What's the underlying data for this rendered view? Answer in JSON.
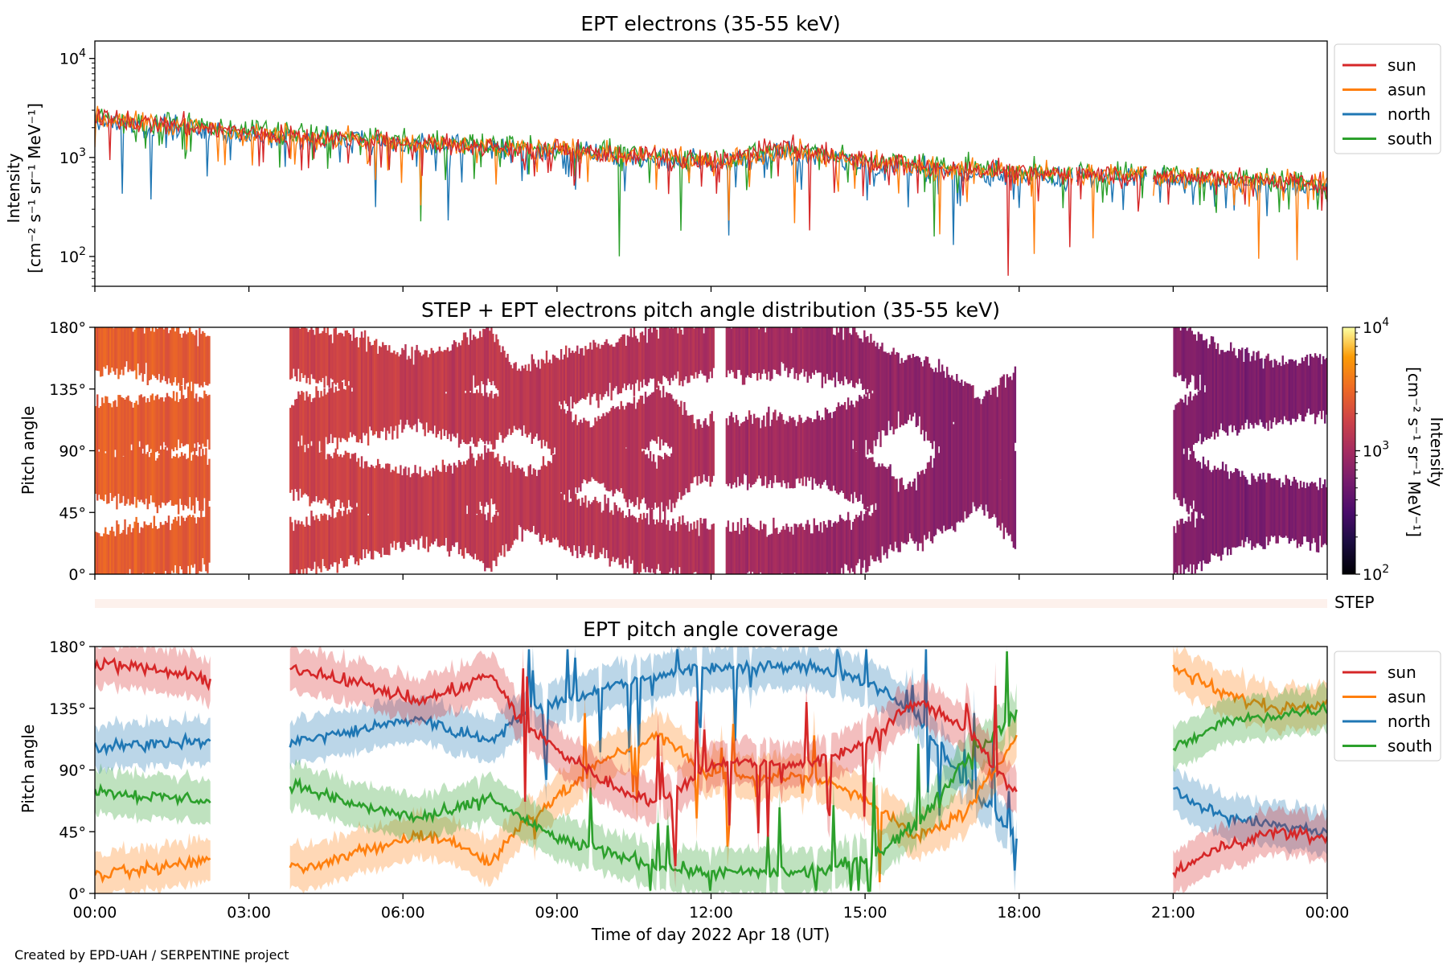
{
  "colors": {
    "sun": "#d62728",
    "asun": "#ff7f0e",
    "north": "#1f77b4",
    "south": "#2ca02c",
    "step_strip": "#fdf1ec"
  },
  "footer": "Created by EPD-UAH / SERPENTINE project",
  "chart_data": [
    {
      "type": "line",
      "title": "EPT electrons (35-55 keV)",
      "ylabel_line1": "Intensity",
      "ylabel_line2": "[cm⁻² s⁻¹ sr⁻¹ MeV⁻¹]",
      "yscale": "log",
      "ylim": [
        50,
        15000
      ],
      "yticks": [
        {
          "v": 100,
          "b": "10",
          "e": "2"
        },
        {
          "v": 1000,
          "b": "10",
          "e": "3"
        },
        {
          "v": 10000,
          "b": "10",
          "e": "4"
        }
      ],
      "xlim": [
        0,
        24
      ],
      "legend_position": "outside-right",
      "gaps": [
        [
          19.05,
          19.12
        ],
        [
          20.5,
          20.6
        ]
      ],
      "series": [
        {
          "name": "sun",
          "trend": [
            [
              0,
              2500
            ],
            [
              3,
              1800
            ],
            [
              6,
              1400
            ],
            [
              9,
              1200
            ],
            [
              12,
              900
            ],
            [
              13.4,
              1300
            ],
            [
              15,
              900
            ],
            [
              18,
              700
            ],
            [
              21,
              650
            ],
            [
              24,
              550
            ]
          ]
        },
        {
          "name": "asun",
          "trend": [
            [
              0,
              2500
            ],
            [
              3,
              1800
            ],
            [
              6,
              1400
            ],
            [
              9,
              1200
            ],
            [
              12,
              900
            ],
            [
              13.4,
              1200
            ],
            [
              15,
              900
            ],
            [
              18,
              700
            ],
            [
              21,
              650
            ],
            [
              24,
              550
            ]
          ]
        },
        {
          "name": "north",
          "trend": [
            [
              0,
              2300
            ],
            [
              3,
              1700
            ],
            [
              6,
              1350
            ],
            [
              9,
              1150
            ],
            [
              12,
              850
            ],
            [
              13.4,
              1100
            ],
            [
              15,
              850
            ],
            [
              18,
              650
            ],
            [
              21,
              600
            ],
            [
              24,
              500
            ]
          ]
        },
        {
          "name": "south",
          "trend": [
            [
              0,
              2600
            ],
            [
              3,
              1900
            ],
            [
              6,
              1450
            ],
            [
              9,
              1250
            ],
            [
              12,
              950
            ],
            [
              13.4,
              1250
            ],
            [
              15,
              950
            ],
            [
              18,
              720
            ],
            [
              21,
              680
            ],
            [
              24,
              560
            ]
          ]
        }
      ]
    },
    {
      "type": "heatmap",
      "title": "STEP + EPT electrons pitch angle distribution (35-55 keV)",
      "ylabel": "Pitch angle",
      "ylim": [
        0,
        180
      ],
      "yticks": [
        "0°",
        "45°",
        "90°",
        "135°",
        "180°"
      ],
      "colorbar": {
        "label": "Intensity",
        "unit": "[cm⁻² s⁻¹ sr⁻¹ MeV⁻¹]",
        "scale": "log",
        "range": [
          100,
          10000
        ],
        "ticks": [
          {
            "v": 100,
            "b": "10",
            "e": "2"
          },
          {
            "v": 1000,
            "b": "10",
            "e": "3"
          },
          {
            "v": 10000,
            "b": "10",
            "e": "4"
          }
        ],
        "colormap": "inferno"
      },
      "coverage_segments": [
        [
          0.0,
          2.25
        ],
        [
          3.8,
          12.05
        ],
        [
          12.3,
          17.95
        ],
        [
          21.0,
          24.0
        ]
      ],
      "intensity_trend": [
        [
          0,
          2800
        ],
        [
          1.2,
          2600
        ],
        [
          2.25,
          2400
        ],
        [
          3.8,
          1800
        ],
        [
          6,
          1500
        ],
        [
          8,
          1400
        ],
        [
          10,
          1300
        ],
        [
          12,
          1100
        ],
        [
          14,
          900
        ],
        [
          16,
          750
        ],
        [
          18,
          700
        ],
        [
          21,
          650
        ],
        [
          24,
          600
        ]
      ]
    },
    {
      "type": "strip",
      "label": "STEP"
    },
    {
      "type": "line",
      "title": "EPT pitch angle coverage",
      "ylabel": "Pitch angle",
      "ylim": [
        0,
        180
      ],
      "yticks": [
        "0°",
        "45°",
        "90°",
        "135°",
        "180°"
      ],
      "xlabel": "Time of day 2022 Apr 18 (UT)",
      "xlim": [
        0,
        24
      ],
      "xtick_values": [
        0,
        3,
        6,
        9,
        12,
        15,
        18,
        21,
        24
      ],
      "xticks": [
        "00:00",
        "03:00",
        "06:00",
        "09:00",
        "12:00",
        "15:00",
        "18:00",
        "21:00",
        "00:00"
      ],
      "legend_position": "outside-right",
      "band_halfwidth_deg": 16,
      "segments": [
        [
          0.0,
          2.25
        ],
        [
          3.8,
          17.95
        ],
        [
          21.0,
          24.0
        ]
      ],
      "series": [
        {
          "name": "sun",
          "points": [
            [
              0,
              168
            ],
            [
              1.2,
              163
            ],
            [
              2.25,
              155
            ],
            [
              3.8,
              165
            ],
            [
              5,
              155
            ],
            [
              6.3,
              140
            ],
            [
              7.0,
              148
            ],
            [
              7.7,
              160
            ],
            [
              8.3,
              125
            ],
            [
              9.0,
              105
            ],
            [
              10.0,
              80
            ],
            [
              11.0,
              65
            ],
            [
              12.0,
              95
            ],
            [
              14.0,
              95
            ],
            [
              15.0,
              110
            ],
            [
              16.0,
              140
            ],
            [
              17.0,
              120
            ],
            [
              17.95,
              70
            ],
            [
              21,
              15
            ],
            [
              22.0,
              35
            ],
            [
              23.0,
              45
            ],
            [
              24,
              40
            ]
          ]
        },
        {
          "name": "asun",
          "points": [
            [
              0,
              13
            ],
            [
              1.2,
              18
            ],
            [
              2.25,
              25
            ],
            [
              3.8,
              18
            ],
            [
              5,
              28
            ],
            [
              6.3,
              42
            ],
            [
              7.0,
              38
            ],
            [
              7.7,
              22
            ],
            [
              8.3,
              50
            ],
            [
              9.0,
              70
            ],
            [
              10.0,
              100
            ],
            [
              11.0,
              115
            ],
            [
              12.0,
              85
            ],
            [
              14.0,
              85
            ],
            [
              15.0,
              70
            ],
            [
              16.0,
              40
            ],
            [
              17.0,
              60
            ],
            [
              17.95,
              115
            ],
            [
              21,
              165
            ],
            [
              22.0,
              145
            ],
            [
              23.0,
              135
            ],
            [
              24,
              140
            ]
          ]
        },
        {
          "name": "north",
          "points": [
            [
              0,
              105
            ],
            [
              1.2,
              110
            ],
            [
              2.25,
              112
            ],
            [
              3.8,
              110
            ],
            [
              5,
              118
            ],
            [
              6.3,
              128
            ],
            [
              7.0,
              118
            ],
            [
              7.7,
              112
            ],
            [
              8.3,
              130
            ],
            [
              9.0,
              140
            ],
            [
              10.0,
              150
            ],
            [
              11.0,
              160
            ],
            [
              12.0,
              165
            ],
            [
              14.0,
              165
            ],
            [
              15.0,
              155
            ],
            [
              16.0,
              130
            ],
            [
              17.0,
              80
            ],
            [
              17.95,
              40
            ],
            [
              21,
              75
            ],
            [
              22.0,
              55
            ],
            [
              23.0,
              50
            ],
            [
              24,
              45
            ]
          ]
        },
        {
          "name": "south",
          "points": [
            [
              0,
              75
            ],
            [
              1.2,
              70
            ],
            [
              2.25,
              68
            ],
            [
              3.8,
              80
            ],
            [
              5,
              65
            ],
            [
              6.3,
              55
            ],
            [
              7.0,
              60
            ],
            [
              7.7,
              70
            ],
            [
              8.3,
              55
            ],
            [
              9.0,
              40
            ],
            [
              10.0,
              30
            ],
            [
              11.0,
              20
            ],
            [
              12.0,
              15
            ],
            [
              14.0,
              15
            ],
            [
              15.0,
              25
            ],
            [
              16.0,
              50
            ],
            [
              17.0,
              100
            ],
            [
              17.95,
              130
            ],
            [
              21,
              105
            ],
            [
              22.0,
              125
            ],
            [
              23.0,
              130
            ],
            [
              24,
              135
            ]
          ]
        }
      ]
    }
  ]
}
